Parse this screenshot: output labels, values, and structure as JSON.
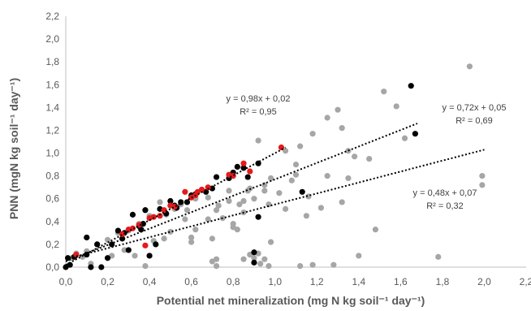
{
  "chart_data": {
    "type": "scatter",
    "xlabel": "Potential net mineralization (mg N kg soil⁻¹ day⁻¹)",
    "ylabel": "PNN (mgN kg soil⁻¹ day⁻¹)",
    "xlim": [
      0,
      2.2
    ],
    "ylim": [
      0,
      2.2
    ],
    "xticks": [
      "0,0",
      "0,2",
      "0,4",
      "0,6",
      "0,8",
      "1,0",
      "1,2",
      "1,4",
      "1,6",
      "1,8",
      "2,0",
      "2,2"
    ],
    "yticks": [
      "0,0",
      "0,2",
      "0,4",
      "0,6",
      "0,8",
      "1,0",
      "1,2",
      "1,4",
      "1,6",
      "1,8",
      "2,0",
      "2,2"
    ],
    "grid": false,
    "series": [
      {
        "color": "#a6a6a6",
        "points": [
          [
            0.03,
            0.08
          ],
          [
            0.05,
            0.12
          ],
          [
            0.1,
            0.14
          ],
          [
            0.15,
            0.2
          ],
          [
            0.2,
            0.24
          ],
          [
            0.25,
            0.3
          ],
          [
            0.3,
            0.32
          ],
          [
            0.35,
            0.38
          ],
          [
            0.38,
            0.5
          ],
          [
            0.4,
            0.45
          ],
          [
            0.45,
            0.57
          ],
          [
            0.47,
            0.25
          ],
          [
            0.48,
            0.46
          ],
          [
            0.52,
            0.51
          ],
          [
            0.55,
            0.55
          ],
          [
            0.57,
            0.42
          ],
          [
            0.58,
            0.5
          ],
          [
            0.6,
            0.22
          ],
          [
            0.6,
            0.26
          ],
          [
            0.62,
            0.6
          ],
          [
            0.65,
            0.68
          ],
          [
            0.68,
            0.61
          ],
          [
            0.7,
            0.05
          ],
          [
            0.7,
            0.25
          ],
          [
            0.72,
            0.01
          ],
          [
            0.72,
            0.07
          ],
          [
            0.72,
            0.5
          ],
          [
            0.73,
            0.54
          ],
          [
            0.75,
            0.43
          ],
          [
            0.78,
            0.58
          ],
          [
            0.8,
            0.35
          ],
          [
            0.8,
            0.38
          ],
          [
            0.82,
            0.33
          ],
          [
            0.83,
            0.55
          ],
          [
            0.85,
            0.07
          ],
          [
            0.85,
            0.48
          ],
          [
            0.87,
            0.67
          ],
          [
            0.88,
            0.11
          ],
          [
            0.88,
            0.69
          ],
          [
            0.9,
            0.08
          ],
          [
            0.9,
            0.6
          ],
          [
            0.92,
            0.12
          ],
          [
            0.92,
            1.11
          ],
          [
            0.93,
            0.03
          ],
          [
            0.95,
            0.07
          ],
          [
            0.95,
            0.67
          ],
          [
            0.97,
            0.01
          ],
          [
            0.97,
            0.55
          ],
          [
            0.98,
            0.22
          ],
          [
            0.98,
            0.78
          ],
          [
            1.05,
            0.51
          ],
          [
            1.05,
            1.02
          ],
          [
            1.08,
            0.76
          ],
          [
            1.1,
            0.81
          ],
          [
            1.12,
            0.01
          ],
          [
            1.12,
            1.06
          ],
          [
            1.15,
            0.45
          ],
          [
            1.16,
            0.62
          ],
          [
            1.18,
            0.02
          ],
          [
            1.18,
            1.17
          ],
          [
            1.22,
            0.52
          ],
          [
            1.25,
            1.31
          ],
          [
            1.28,
            0.02
          ],
          [
            1.3,
            1.38
          ],
          [
            1.32,
            1.22
          ],
          [
            1.32,
            0.57
          ],
          [
            1.35,
            0.78
          ],
          [
            1.35,
            1.02
          ],
          [
            1.38,
            0.97
          ],
          [
            1.4,
            0.1
          ],
          [
            1.48,
            0.33
          ],
          [
            1.52,
            1.54
          ],
          [
            1.58,
            1.41
          ],
          [
            1.62,
            1.13
          ],
          [
            1.78,
            0.09
          ],
          [
            1.93,
            1.76
          ],
          [
            1.99,
            0.8
          ],
          [
            1.99,
            0.72
          ],
          [
            0.08,
            0.09
          ],
          [
            0.12,
            0.03
          ],
          [
            0.22,
            0.1
          ],
          [
            0.28,
            0.15
          ],
          [
            0.33,
            0.1
          ],
          [
            0.38,
            0.01
          ],
          [
            0.42,
            0.23
          ],
          [
            0.5,
            0.31
          ],
          [
            0.62,
            0.33
          ],
          [
            0.68,
            0.42
          ],
          [
            0.78,
            0.67
          ],
          [
            0.85,
            0.58
          ],
          [
            0.95,
            0.72
          ],
          [
            1.02,
            0.65
          ],
          [
            1.1,
            0.9
          ],
          [
            1.25,
            0.8
          ],
          [
            1.45,
            0.95
          ]
        ]
      },
      {
        "color": "#000000",
        "points": [
          [
            0.0,
            0.0
          ],
          [
            0.01,
            0.08
          ],
          [
            0.02,
            0.02
          ],
          [
            0.04,
            0.09
          ],
          [
            0.1,
            0.11
          ],
          [
            0.1,
            0.26
          ],
          [
            0.12,
            0.0
          ],
          [
            0.15,
            0.2
          ],
          [
            0.17,
            0.0
          ],
          [
            0.2,
            0.08
          ],
          [
            0.22,
            0.2
          ],
          [
            0.25,
            0.32
          ],
          [
            0.27,
            0.25
          ],
          [
            0.28,
            0.3
          ],
          [
            0.3,
            0.15
          ],
          [
            0.32,
            0.46
          ],
          [
            0.35,
            0.36
          ],
          [
            0.36,
            0.33
          ],
          [
            0.37,
            0.38
          ],
          [
            0.38,
            0.5
          ],
          [
            0.4,
            0.1
          ],
          [
            0.43,
            0.2
          ],
          [
            0.45,
            0.51
          ],
          [
            0.48,
            0.47
          ],
          [
            0.5,
            0.58
          ],
          [
            0.52,
            0.54
          ],
          [
            0.53,
            0.52
          ],
          [
            0.55,
            0.57
          ],
          [
            0.58,
            0.57
          ],
          [
            0.6,
            0.63
          ],
          [
            0.62,
            0.64
          ],
          [
            0.67,
            0.66
          ],
          [
            0.7,
            0.69
          ],
          [
            0.72,
            0.79
          ],
          [
            0.78,
            0.78
          ],
          [
            0.8,
            0.83
          ],
          [
            0.82,
            0.88
          ],
          [
            0.85,
            0.87
          ],
          [
            0.87,
            0.79
          ],
          [
            0.9,
            0.04
          ],
          [
            0.9,
            0.13
          ],
          [
            0.92,
            0.91
          ],
          [
            0.92,
            0.44
          ],
          [
            1.13,
            0.66
          ],
          [
            1.65,
            1.59
          ],
          [
            1.67,
            1.17
          ]
        ]
      },
      {
        "color": "#e41a1c",
        "points": [
          [
            0.05,
            0.11
          ],
          [
            0.27,
            0.29
          ],
          [
            0.3,
            0.33
          ],
          [
            0.32,
            0.34
          ],
          [
            0.35,
            0.37
          ],
          [
            0.38,
            0.19
          ],
          [
            0.4,
            0.43
          ],
          [
            0.42,
            0.44
          ],
          [
            0.45,
            0.45
          ],
          [
            0.47,
            0.5
          ],
          [
            0.5,
            0.54
          ],
          [
            0.52,
            0.53
          ],
          [
            0.57,
            0.66
          ],
          [
            0.6,
            0.61
          ],
          [
            0.62,
            0.63
          ],
          [
            0.63,
            0.66
          ],
          [
            0.65,
            0.68
          ],
          [
            0.68,
            0.7
          ],
          [
            0.78,
            0.81
          ],
          [
            0.8,
            0.8
          ],
          [
            0.85,
            0.91
          ],
          [
            0.88,
            0.84
          ],
          [
            1.03,
            1.05
          ]
        ]
      }
    ],
    "trendlines": [
      {
        "slope": 0.98,
        "intercept": 0.02,
        "x": [
          0.0,
          1.05
        ],
        "equation": "y = 0,98x + 0,02",
        "r2": "R² = 0,95"
      },
      {
        "slope": 0.72,
        "intercept": 0.05,
        "x": [
          0.0,
          1.68
        ],
        "equation": "y = 0,72x + 0,05",
        "r2": "R² = 0,69"
      },
      {
        "slope": 0.48,
        "intercept": 0.07,
        "x": [
          0.0,
          2.0
        ],
        "equation": "y = 0,48x + 0,07",
        "r2": "R² = 0,32"
      }
    ]
  }
}
